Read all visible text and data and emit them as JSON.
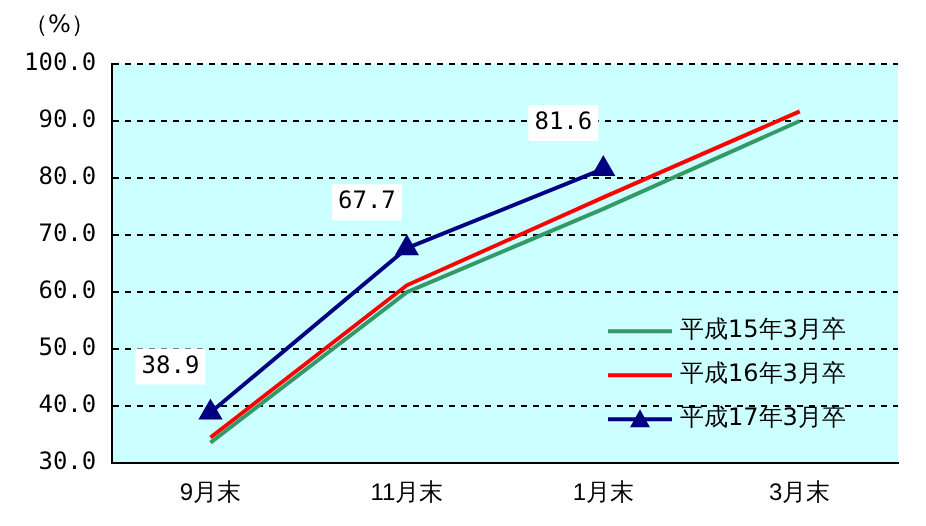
{
  "chart_data": {
    "type": "line",
    "ylabel": "（%）",
    "categories": [
      "9月末",
      "11月末",
      "1月末",
      "3月末"
    ],
    "series": [
      {
        "name": "平成15年3月卒",
        "color": "#339966",
        "values": [
          33.6,
          60.0,
          74.6,
          90.0
        ],
        "marker": "none"
      },
      {
        "name": "平成16年3月卒",
        "color": "#ff0000",
        "values": [
          34.5,
          61.2,
          76.6,
          91.7
        ],
        "marker": "none"
      },
      {
        "name": "平成17年3月卒",
        "color": "#000080",
        "values": [
          38.9,
          67.7,
          81.6,
          null
        ],
        "marker": "triangle",
        "value_labels": [
          "38.9",
          "67.7",
          "81.6",
          null
        ]
      }
    ],
    "ylim": [
      30,
      100
    ],
    "yticks": [
      {
        "value": 30,
        "label": "30.0"
      },
      {
        "value": 40,
        "label": "40.0"
      },
      {
        "value": 50,
        "label": "50.0"
      },
      {
        "value": 60,
        "label": "60.0"
      },
      {
        "value": 70,
        "label": "70.0"
      },
      {
        "value": 80,
        "label": "80.0"
      },
      {
        "value": 90,
        "label": "90.0"
      },
      {
        "value": 100,
        "label": "100.0"
      }
    ],
    "grid": "y",
    "legend": "bottom right"
  }
}
